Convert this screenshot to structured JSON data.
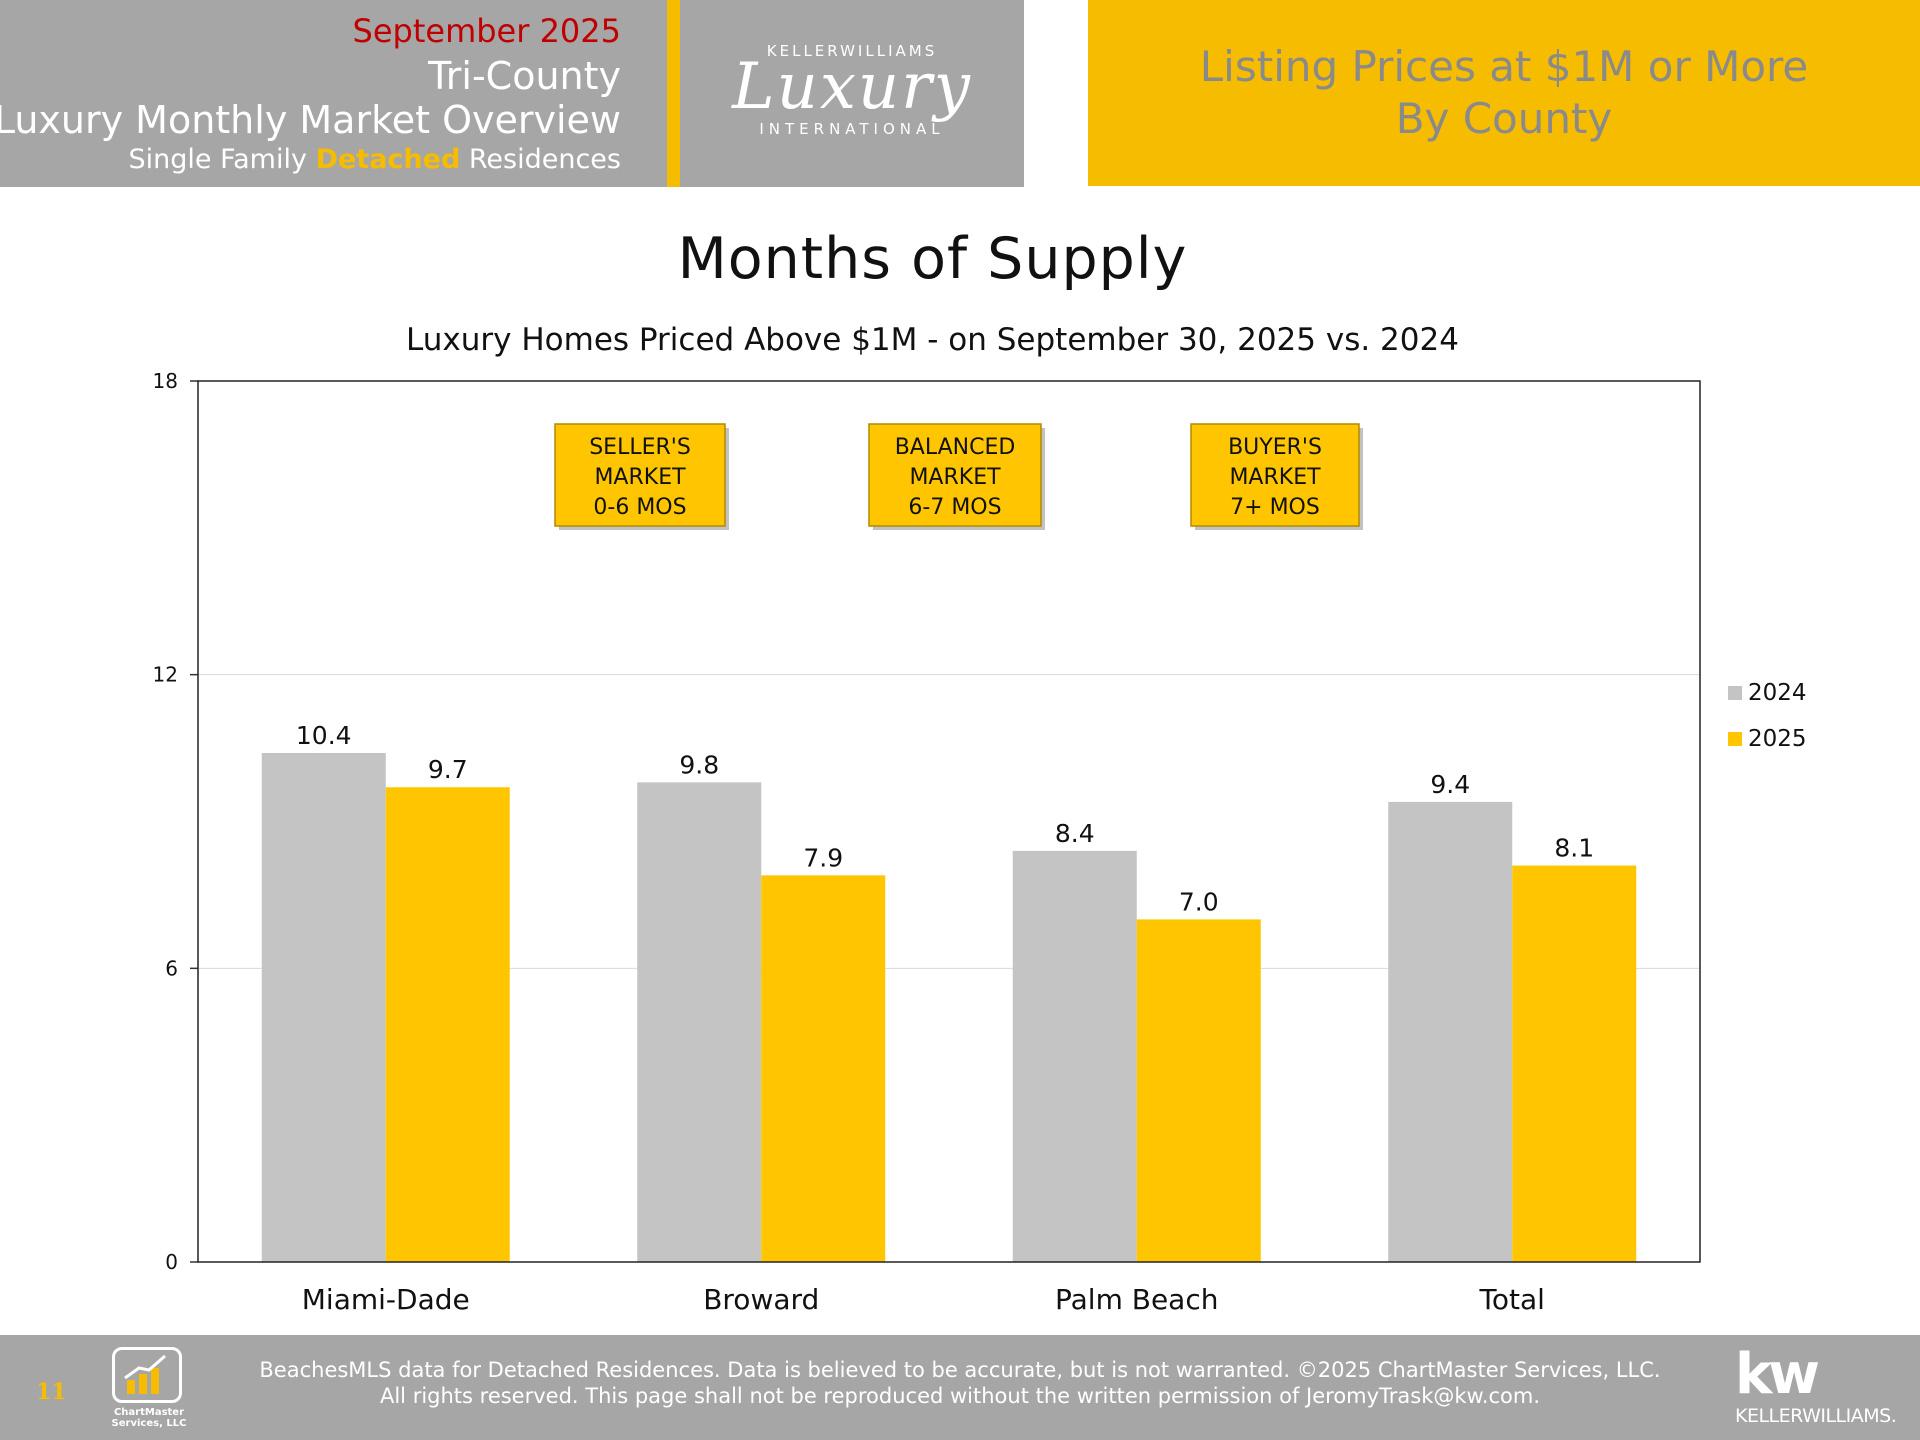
{
  "header": {
    "month": "September 2025",
    "region": "Tri-County",
    "report": "Luxury Monthly Market Overview",
    "property_prefix": "Single Family",
    "property_highlight": "Detached",
    "property_suffix": "Residences",
    "logo_top": "KELLERWILLIAMS",
    "logo_main": "Luxury",
    "logo_bottom": "INTERNATIONAL",
    "right_line1": "Listing Prices at $1M or More",
    "right_line2": "By County",
    "month_color": "#c00000",
    "accent": "#f5bc00",
    "panel_gray": "#a6a6a6"
  },
  "chart_data": {
    "type": "bar",
    "title": "Months of Supply",
    "subtitle": "Luxury Homes Priced Above $1M - on September 30,  2025 vs. 2024",
    "categories": [
      "Miami-Dade",
      "Broward",
      "Palm Beach",
      "Total"
    ],
    "series": [
      {
        "name": "2024",
        "color": "#c4c4c4",
        "values": [
          10.4,
          9.8,
          8.4,
          9.4
        ]
      },
      {
        "name": "2025",
        "color": "#ffc600",
        "values": [
          9.7,
          7.9,
          7.0,
          8.1
        ]
      }
    ],
    "data_labels": [
      [
        "10.4",
        "9.8",
        "8.4",
        "9.4"
      ],
      [
        "9.7",
        "7.9",
        "7.0",
        "8.1"
      ]
    ],
    "ylim": [
      0,
      18
    ],
    "yticks": [
      0,
      6,
      12,
      18
    ],
    "grid": true,
    "legend": "right",
    "annotations": [
      {
        "lines": [
          "SELLER'S",
          "MARKET",
          "0-6 MOS"
        ]
      },
      {
        "lines": [
          "BALANCED",
          "MARKET",
          "6-7 MOS"
        ]
      },
      {
        "lines": [
          "BUYER'S",
          "MARKET",
          "7+ MOS"
        ]
      }
    ]
  },
  "footer": {
    "page_number": "11",
    "logo_text_line1": "ChartMaster",
    "logo_text_line2": "Services, LLC",
    "source_line1": "BeachesMLS data for Detached Residences.  Data is believed to be accurate, but is not warranted.   ©2025  ChartMaster Services, LLC.",
    "source_line2": "All rights reserved. This page shall not be reproduced without the written permission of JeromyTrask@kw.com.",
    "kw_logo": "kw",
    "kw_name": "KELLERWILLIAMS."
  }
}
